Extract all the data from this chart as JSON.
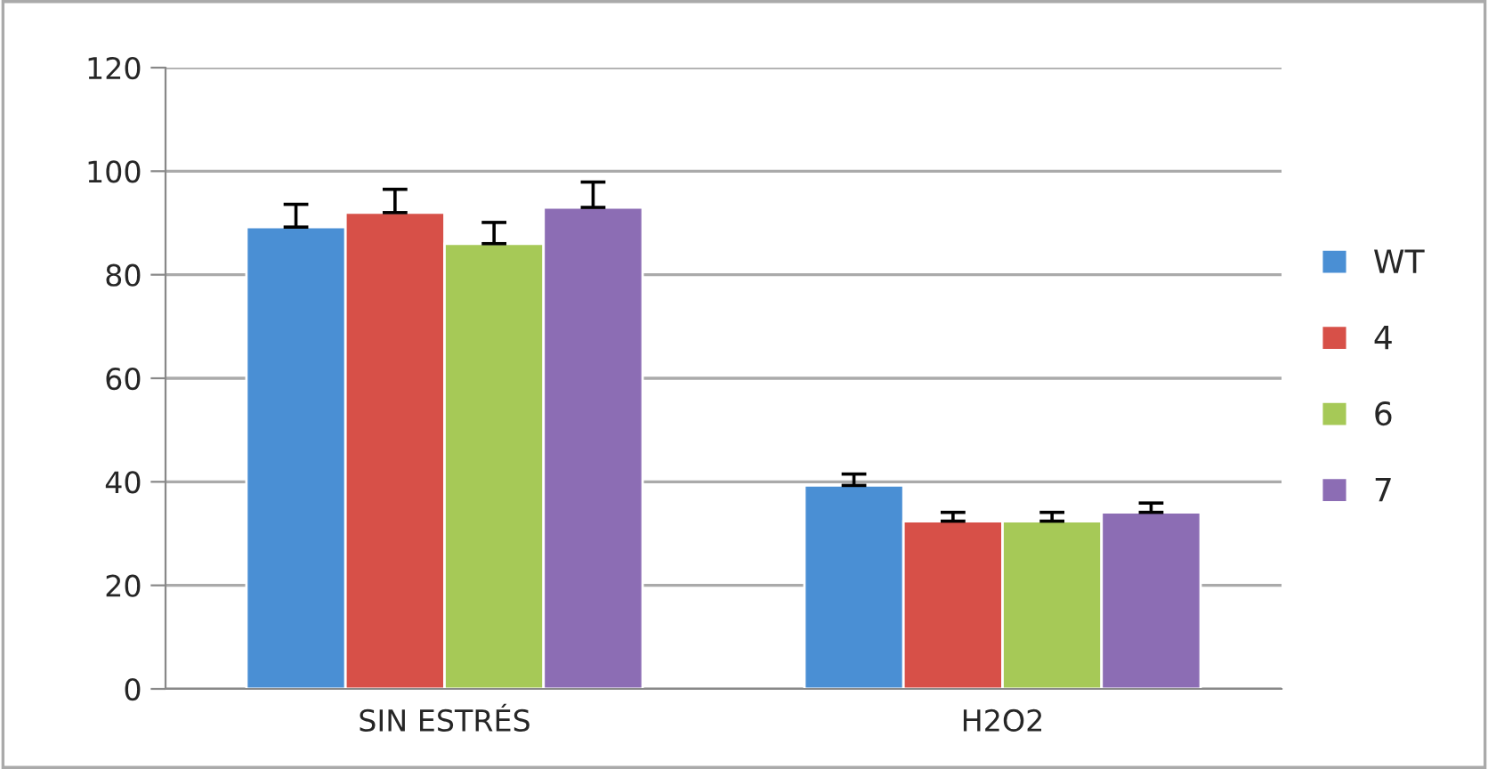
{
  "chart_data": {
    "type": "bar",
    "categories": [
      "SIN ESTRÉS",
      "H2O2"
    ],
    "series": [
      {
        "name": "WT",
        "color": "#4a8fd4",
        "values": [
          89.2,
          39.3
        ],
        "errors": [
          4.4,
          2.2
        ]
      },
      {
        "name": "4",
        "color": "#d75048",
        "values": [
          92.0,
          32.4
        ],
        "errors": [
          4.5,
          1.7
        ]
      },
      {
        "name": "6",
        "color": "#a6c957",
        "values": [
          86.0,
          32.4
        ],
        "errors": [
          4.1,
          1.7
        ]
      },
      {
        "name": "7",
        "color": "#8c6db4",
        "values": [
          93.0,
          34.1
        ],
        "errors": [
          4.9,
          1.8
        ]
      }
    ],
    "ylim": [
      0,
      120
    ],
    "yticks": [
      0,
      20,
      40,
      60,
      80,
      100,
      120
    ],
    "grid": "y",
    "legend": "right"
  }
}
